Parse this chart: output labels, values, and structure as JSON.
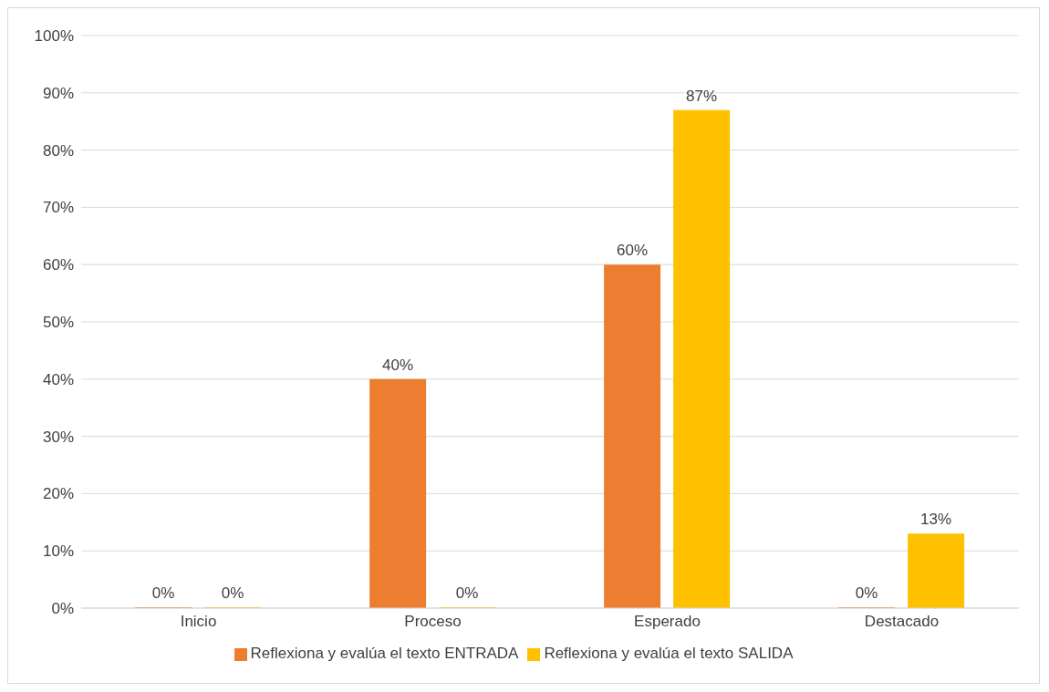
{
  "chart_data": {
    "type": "bar",
    "categories": [
      "Inicio",
      "Proceso",
      "Esperado",
      "Destacado"
    ],
    "series": [
      {
        "name": "Reflexiona y evalúa el texto ENTRADA",
        "color": "#ed7d31",
        "values": [
          0,
          40,
          60,
          0
        ],
        "value_labels": [
          "0%",
          "40%",
          "60%",
          "0%"
        ]
      },
      {
        "name": "Reflexiona y evalúa el texto SALIDA",
        "color": "#ffc000",
        "values": [
          0,
          0,
          87,
          13
        ],
        "value_labels": [
          "0%",
          "0%",
          "87%",
          "13%"
        ]
      }
    ],
    "ylim": [
      0,
      100
    ],
    "yticks": [
      {
        "value": 0,
        "label": "0%"
      },
      {
        "value": 10,
        "label": "10%"
      },
      {
        "value": 20,
        "label": "20%"
      },
      {
        "value": 30,
        "label": "30%"
      },
      {
        "value": 40,
        "label": "40%"
      },
      {
        "value": 50,
        "label": "50%"
      },
      {
        "value": 60,
        "label": "60%"
      },
      {
        "value": 70,
        "label": "70%"
      },
      {
        "value": 80,
        "label": "80%"
      },
      {
        "value": 90,
        "label": "90%"
      },
      {
        "value": 100,
        "label": "100%"
      }
    ],
    "grid": "y",
    "legend": "bottom"
  }
}
